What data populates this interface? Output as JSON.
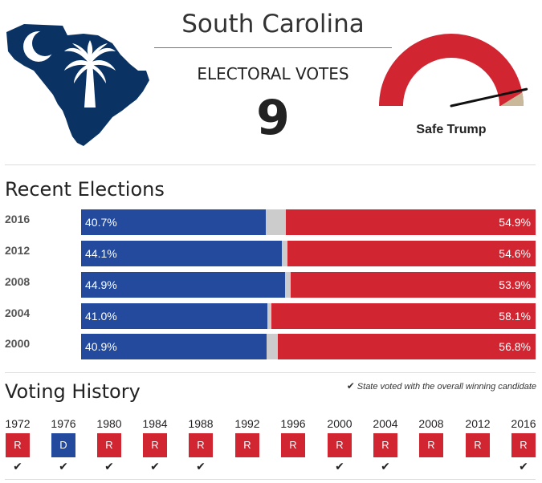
{
  "header": {
    "state_name": "South Carolina",
    "ev_label": "ELECTORAL VOTES",
    "ev_value": "9",
    "rating": "Safe Trump"
  },
  "colors": {
    "dem": "#234a9c",
    "rep": "#d22532",
    "other": "#cccccc",
    "flag_blue": "#0a3364",
    "gauge_red": "#d22532",
    "gauge_tan": "#c9b89a"
  },
  "gauge": {
    "level": 0.93
  },
  "recent": {
    "title": "Recent Elections",
    "rows": [
      {
        "year": "2016",
        "dem": 40.7,
        "rep": 54.9,
        "dem_label": "40.7%",
        "rep_label": "54.9%"
      },
      {
        "year": "2012",
        "dem": 44.1,
        "rep": 54.6,
        "dem_label": "44.1%",
        "rep_label": "54.6%"
      },
      {
        "year": "2008",
        "dem": 44.9,
        "rep": 53.9,
        "dem_label": "44.9%",
        "rep_label": "53.9%"
      },
      {
        "year": "2004",
        "dem": 41.0,
        "rep": 58.1,
        "dem_label": "41.0%",
        "rep_label": "58.1%"
      },
      {
        "year": "2000",
        "dem": 40.9,
        "rep": 56.8,
        "dem_label": "40.9%",
        "rep_label": "56.8%"
      }
    ]
  },
  "history": {
    "title": "Voting History",
    "legend": "State voted with the overall winning candidate",
    "check_glyph": "✔",
    "items": [
      {
        "year": "1972",
        "party": "R",
        "won": true
      },
      {
        "year": "1976",
        "party": "D",
        "won": true
      },
      {
        "year": "1980",
        "party": "R",
        "won": true
      },
      {
        "year": "1984",
        "party": "R",
        "won": true
      },
      {
        "year": "1988",
        "party": "R",
        "won": true
      },
      {
        "year": "1992",
        "party": "R",
        "won": false
      },
      {
        "year": "1996",
        "party": "R",
        "won": false
      },
      {
        "year": "2000",
        "party": "R",
        "won": true
      },
      {
        "year": "2004",
        "party": "R",
        "won": true
      },
      {
        "year": "2008",
        "party": "R",
        "won": false
      },
      {
        "year": "2012",
        "party": "R",
        "won": false
      },
      {
        "year": "2016",
        "party": "R",
        "won": true
      }
    ]
  }
}
